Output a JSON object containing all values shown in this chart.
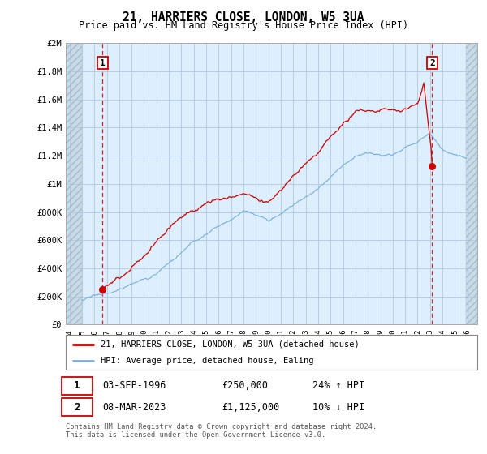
{
  "title": "21, HARRIERS CLOSE, LONDON, W5 3UA",
  "subtitle": "Price paid vs. HM Land Registry's House Price Index (HPI)",
  "legend_line1": "21, HARRIERS CLOSE, LONDON, W5 3UA (detached house)",
  "legend_line2": "HPI: Average price, detached house, Ealing",
  "annotation1_date": "03-SEP-1996",
  "annotation1_price": "£250,000",
  "annotation1_hpi": "24% ↑ HPI",
  "annotation2_date": "08-MAR-2023",
  "annotation2_price": "£1,125,000",
  "annotation2_hpi": "10% ↓ HPI",
  "footer": "Contains HM Land Registry data © Crown copyright and database right 2024.\nThis data is licensed under the Open Government Licence v3.0.",
  "hpi_color": "#7aafda",
  "price_color": "#cc0000",
  "dashed_line_color": "#cc0000",
  "plot_bg_color": "#ddeeff",
  "hatch_bg_color": "#c8dce8",
  "grid_color": "#b0c8e0",
  "ylim": [
    0,
    2000000
  ],
  "xlim_start": 1993.7,
  "xlim_end": 2026.8,
  "sale1_year": 1996.67,
  "sale1_price": 250000,
  "sale2_year": 2023.17,
  "sale2_price": 1125000,
  "yticks": [
    0,
    200000,
    400000,
    600000,
    800000,
    1000000,
    1200000,
    1400000,
    1600000,
    1800000,
    2000000
  ],
  "ylabels": [
    "£0",
    "£200K",
    "£400K",
    "£600K",
    "£800K",
    "£1M",
    "£1.2M",
    "£1.4M",
    "£1.6M",
    "£1.8M",
    "£2M"
  ]
}
